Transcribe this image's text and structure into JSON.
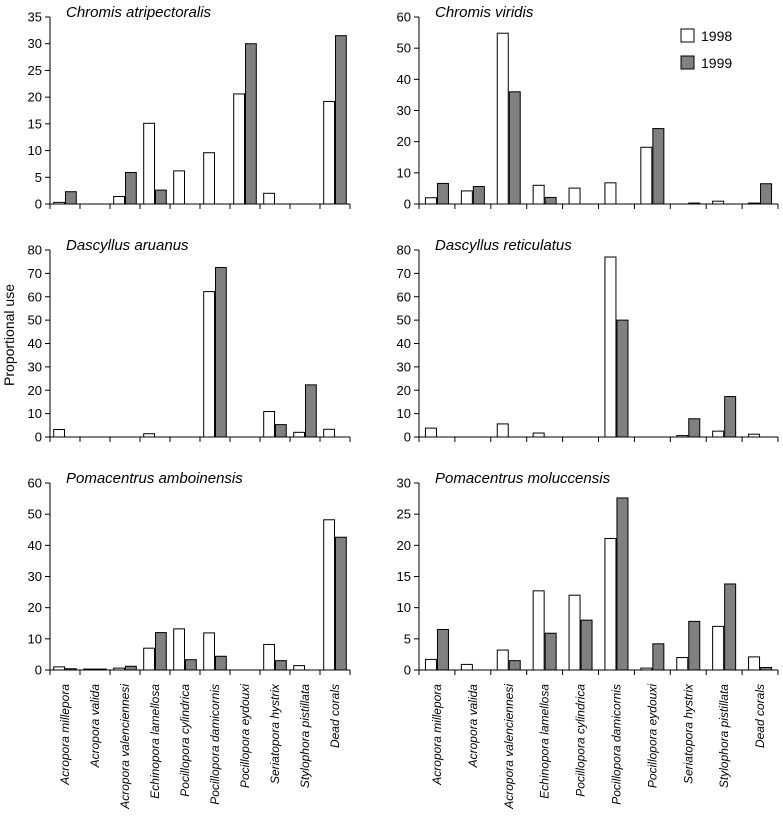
{
  "figure": {
    "ylabel": "Proportional use",
    "legend": {
      "placement": "top-right of upper-right panel",
      "entries": [
        "1998",
        "1999"
      ],
      "colors": [
        "#ffffff",
        "#808080"
      ]
    }
  },
  "chart_data": [
    {
      "type": "bar",
      "title": "Chromis atripectoralis",
      "ylim": [
        0,
        35
      ],
      "yticks": [
        0,
        5,
        10,
        15,
        20,
        25,
        30,
        35
      ],
      "categories": [
        "Acropora millepora",
        "Acropora valida",
        "Acropora valenciennesi",
        "Echinopora lamellosa",
        "Pocillopora cylindrica",
        "Pocillopora damicornis",
        "Pocillopora eydouxi",
        "Seriatopora hystrix",
        "Stylophora pistillata",
        "Dead corals"
      ],
      "series": [
        {
          "name": "1998",
          "values": [
            0.3,
            0,
            1.4,
            15.1,
            6.2,
            9.6,
            20.6,
            2.0,
            0,
            19.2
          ]
        },
        {
          "name": "1999",
          "values": [
            2.3,
            0,
            5.9,
            2.6,
            0,
            0,
            30.0,
            0,
            0,
            31.5
          ]
        }
      ]
    },
    {
      "type": "bar",
      "title": "Chromis viridis",
      "ylim": [
        0,
        60
      ],
      "yticks": [
        0,
        10,
        20,
        30,
        40,
        50,
        60
      ],
      "categories": [
        "Acropora millepora",
        "Acropora valida",
        "Acropora valenciennesi",
        "Echinopora lamellosa",
        "Pocillopora cylindrica",
        "Pocillopora damicornis",
        "Pocillopora eydouxi",
        "Seriatopora hystrix",
        "Stylophora pistillata",
        "Dead corals"
      ],
      "series": [
        {
          "name": "1998",
          "values": [
            2.0,
            4.2,
            54.8,
            6.0,
            5.1,
            6.8,
            18.2,
            0,
            0.9,
            0.3
          ]
        },
        {
          "name": "1999",
          "values": [
            6.6,
            5.6,
            36.0,
            2.1,
            0,
            0,
            24.2,
            0.3,
            0,
            6.5
          ]
        }
      ]
    },
    {
      "type": "bar",
      "title": "Dascyllus aruanus",
      "ylim": [
        0,
        80
      ],
      "yticks": [
        0,
        10,
        20,
        30,
        40,
        50,
        60,
        70,
        80
      ],
      "categories": [
        "Acropora millepora",
        "Acropora valida",
        "Acropora valenciennesi",
        "Echinopora lamellosa",
        "Pocillopora cylindrica",
        "Pocillopora damicornis",
        "Pocillopora eydouxi",
        "Seriatopora hystrix",
        "Stylophora pistillata",
        "Dead corals"
      ],
      "series": [
        {
          "name": "1998",
          "values": [
            3.2,
            0,
            0,
            1.4,
            0,
            62.2,
            0,
            10.9,
            2.0,
            3.3
          ]
        },
        {
          "name": "1999",
          "values": [
            0,
            0,
            0,
            0,
            0,
            72.5,
            0,
            5.3,
            22.3,
            0
          ]
        }
      ]
    },
    {
      "type": "bar",
      "title": "Dascyllus reticulatus",
      "ylim": [
        0,
        80
      ],
      "yticks": [
        0,
        10,
        20,
        30,
        40,
        50,
        60,
        70,
        80
      ],
      "categories": [
        "Acropora millepora",
        "Acropora valida",
        "Acropora valenciennesi",
        "Echinopora lamellosa",
        "Pocillopora cylindrica",
        "Pocillopora damicornis",
        "Pocillopora eydouxi",
        "Seriatopora hystrix",
        "Stylophora pistillata",
        "Dead corals"
      ],
      "series": [
        {
          "name": "1998",
          "values": [
            3.8,
            0,
            5.6,
            1.7,
            0,
            77.0,
            0,
            0.6,
            2.5,
            1.2
          ]
        },
        {
          "name": "1999",
          "values": [
            0,
            0,
            0,
            0,
            0,
            50.0,
            0,
            7.8,
            17.3,
            0
          ]
        }
      ]
    },
    {
      "type": "bar",
      "title": "Pomacentrus amboinensis",
      "ylim": [
        0,
        60
      ],
      "yticks": [
        0,
        10,
        20,
        30,
        40,
        50,
        60
      ],
      "categories": [
        "Acropora millepora",
        "Acropora valida",
        "Acropora valenciennesi",
        "Echinopora lamellosa",
        "Pocillopora cylindrica",
        "Pocillopora damicornis",
        "Pocillopora eydouxi",
        "Seriatopora hystrix",
        "Stylophora pistillata",
        "Dead corals"
      ],
      "series": [
        {
          "name": "1998",
          "values": [
            1.0,
            0.3,
            0.6,
            7.0,
            13.2,
            11.9,
            0,
            8.2,
            1.4,
            48.2
          ]
        },
        {
          "name": "1999",
          "values": [
            0.4,
            0.3,
            1.2,
            12.0,
            3.3,
            4.4,
            0,
            3.0,
            0,
            42.6
          ]
        }
      ]
    },
    {
      "type": "bar",
      "title": "Pomacentrus moluccensis",
      "ylim": [
        0,
        30
      ],
      "yticks": [
        0,
        5,
        10,
        15,
        20,
        25,
        30
      ],
      "categories": [
        "Acropora millepora",
        "Acropora valida",
        "Acropora valenciennesi",
        "Echinopora lamellosa",
        "Pocillopora cylindrica",
        "Pocillopora damicornis",
        "Pocillopora eydouxi",
        "Seriatopora hystrix",
        "Stylophora pistillata",
        "Dead corals"
      ],
      "series": [
        {
          "name": "1998",
          "values": [
            1.7,
            0.9,
            3.2,
            12.7,
            12.0,
            21.1,
            0.3,
            2.0,
            7.0,
            2.1
          ]
        },
        {
          "name": "1999",
          "values": [
            6.5,
            0,
            1.5,
            5.9,
            8.0,
            27.6,
            4.2,
            7.8,
            13.8,
            0.4
          ]
        }
      ]
    }
  ]
}
